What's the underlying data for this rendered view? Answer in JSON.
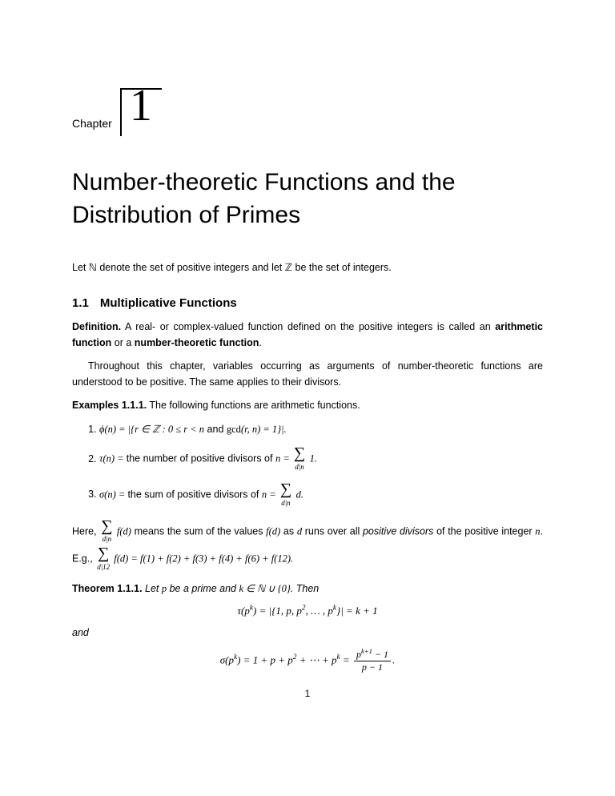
{
  "chapter": {
    "label": "Chapter",
    "number": "1",
    "title": "Number-theoretic Functions and the Distribution of Primes"
  },
  "intro": {
    "text_pre": "Let ",
    "set_N": "ℕ",
    "text_mid": " denote the set of positive integers and let ",
    "set_Z": "ℤ",
    "text_post": " be the set of integers."
  },
  "section": {
    "number": "1.1",
    "title": "Multiplicative Functions"
  },
  "definition": {
    "label": "Definition.",
    "text_pre": " A real- or complex-valued function defined on the positive integers is called an ",
    "term1": "arithmetic function",
    "text_mid": " or a ",
    "term2": "number-theoretic function",
    "text_post": "."
  },
  "para1": "Throughout this chapter, variables occurring as arguments of number-theoretic functions are understood to be positive. The same applies to their divisors.",
  "examples": {
    "label": "Examples 1.1.1.",
    "intro": " The following functions are arithmetic functions.",
    "items": {
      "item1_lead": "ϕ(n) = |{r ∈ ℤ : 0 ≤ r < n",
      "item1_and": " and ",
      "item1_gcd": "gcd(r, n) = 1}|.",
      "item2_lead": "τ(n) = ",
      "item2_text": "the number of positive divisors of ",
      "item2_tail": "n = ",
      "item2_sum_below": "d|n",
      "item2_after": " 1.",
      "item3_lead": "σ(n) = ",
      "item3_text": "the sum of positive divisors of ",
      "item3_tail": "n = ",
      "item3_sum_below": "d|n",
      "item3_after": " d."
    }
  },
  "para2": {
    "pre": "Here, ",
    "sum_below": "d|n",
    "sumexpr": " f(d)",
    "mid1": " means the sum of the values ",
    "fd": "f(d)",
    "mid2": " as ",
    "d": "d",
    "mid3": " runs over all ",
    "emph": "positive divisors",
    "mid4": " of the positive integer ",
    "n": "n",
    "mid5": ". E.g., ",
    "sum_below2": "d|12",
    "sumexpr2": " f(d) = f(1) + f(2) + f(3) + f(4) + f(6) + f(12)."
  },
  "theorem": {
    "label": "Theorem 1.1.1.",
    "text_pre": " Let ",
    "p": "p",
    "text_mid1": " be a prime and ",
    "k": "k ∈ ℕ ∪ {0}",
    "text_post": ". Then"
  },
  "eq1": "τ(p<sup>k</sup>) = |{1, p, p<sup>2</sup>, … , p<sup>k</sup>}| = k + 1",
  "and": "and",
  "eq2": {
    "left": "σ(p<sup>k</sup>) = 1 + p + p<sup>2</sup> + ⋯ + p<sup>k</sup> = ",
    "frac_num": "p<sup>k+1</sup> − 1",
    "frac_den": "p − 1",
    "tail": "."
  },
  "pagenum": "1",
  "sigma_glyph": "∑"
}
